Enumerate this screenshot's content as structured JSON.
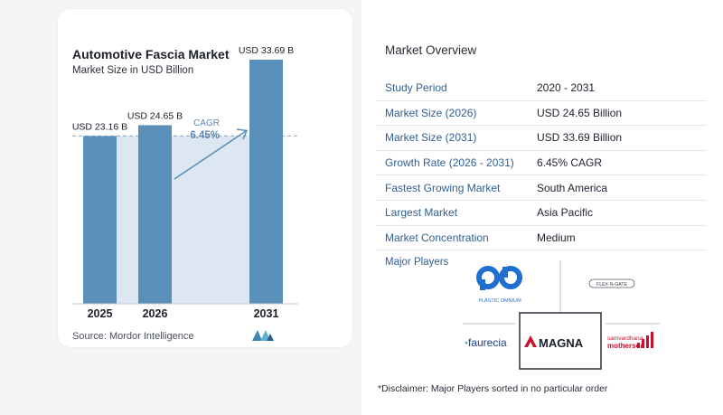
{
  "chart_data": {
    "type": "bar",
    "title": "Automotive Fascia Market",
    "subtitle": "Market Size in USD Billion",
    "categories": [
      "2025",
      "2026",
      "2031"
    ],
    "values": [
      23.16,
      24.65,
      33.69
    ],
    "data_labels": [
      "USD 23.16 B",
      "USD 24.65 B",
      "USD 33.69 B"
    ],
    "cagr_label": "CAGR",
    "cagr_value": "6.45%",
    "ylim": [
      0,
      36
    ],
    "grid": false,
    "colors": {
      "bar": "#5a8fba",
      "bar_highlight": "#dde7f1",
      "dash": "#8aa6c0"
    }
  },
  "source": "Source:  Mordor Intelligence",
  "overview": {
    "title": "Market Overview",
    "rows": [
      {
        "key": "Study Period",
        "value": "2020 - 2031"
      },
      {
        "key": "Market Size (2026)",
        "value": "USD 24.65 Billion"
      },
      {
        "key": "Market Size (2031)",
        "value": "USD 33.69 Billion"
      },
      {
        "key": "Growth Rate (2026 - 2031)",
        "value": "6.45% CAGR"
      },
      {
        "key": "Fastest Growing Market",
        "value": "South America"
      },
      {
        "key": "Largest Market",
        "value": "Asia Pacific"
      },
      {
        "key": "Market Concentration",
        "value": "Medium"
      }
    ]
  },
  "players": {
    "label": "Major Players",
    "logos": {
      "plastic_omnium": "PLASTIC OMNIUM",
      "flex_n_gate": "FLEX-N-GATE",
      "faurecia": "faurecia",
      "magna": "MAGNA",
      "motherson_top": "samvardhana",
      "motherson_bottom": "motherson"
    }
  },
  "disclaimer": "*Disclaimer: Major Players sorted in no particular order"
}
